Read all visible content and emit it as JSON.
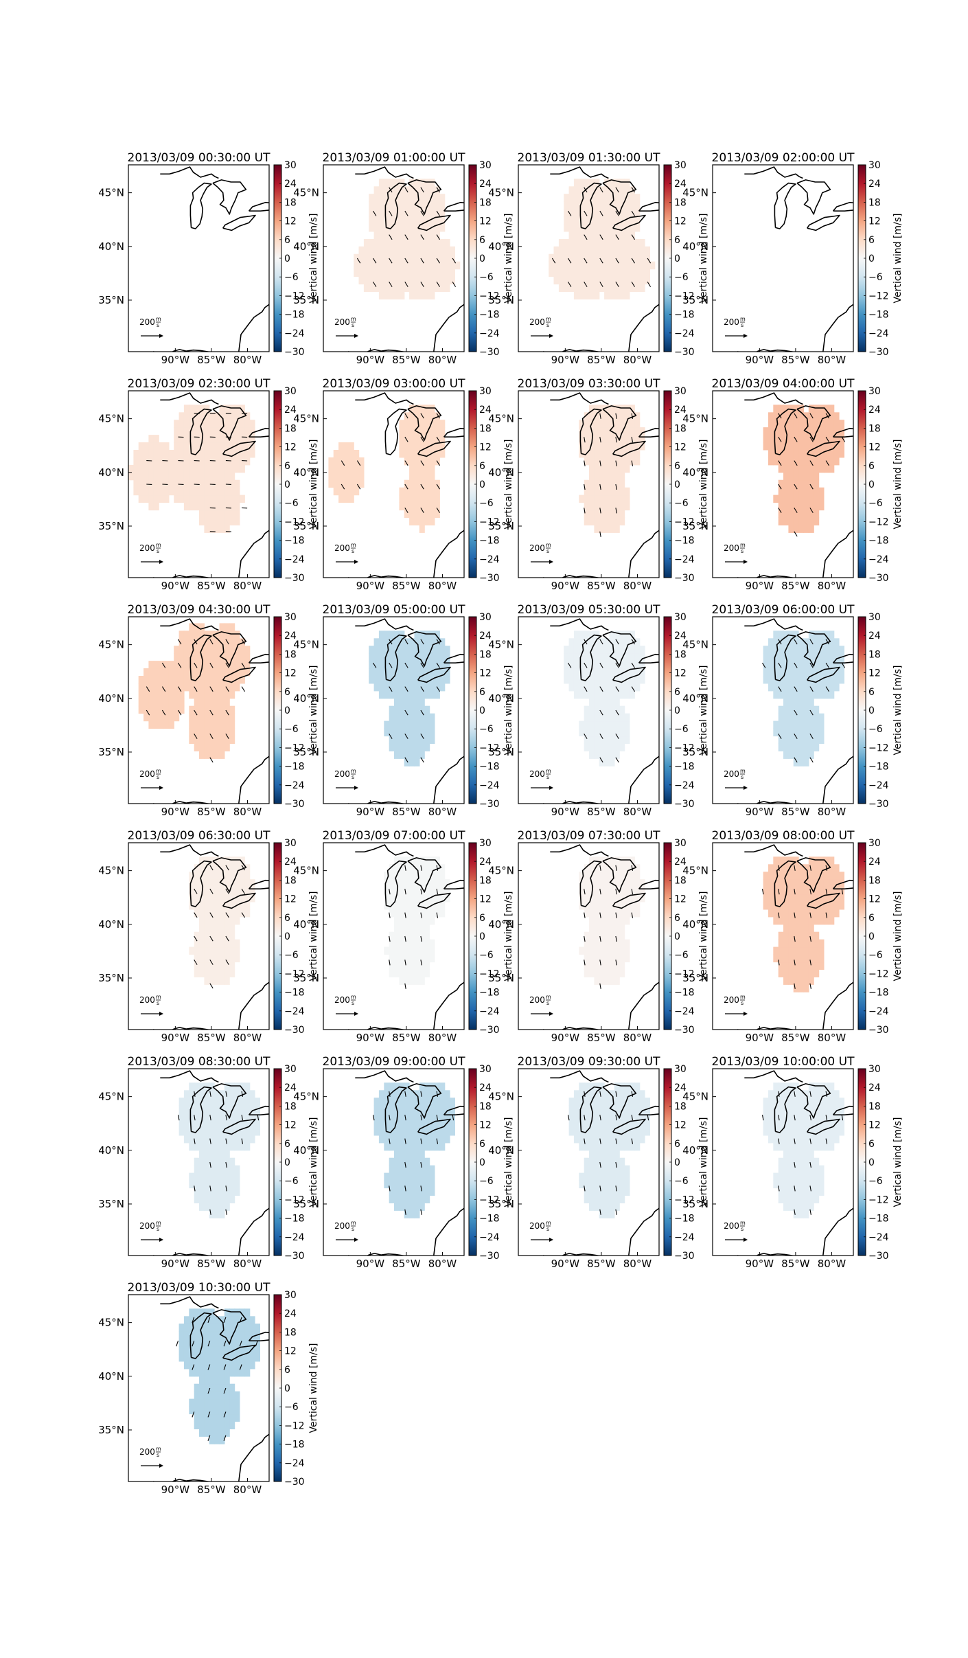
{
  "figure": {
    "colorbar_label": "Vertical wind [m/s]",
    "colorbar_ticks": [
      30,
      24,
      18,
      12,
      6,
      0,
      -6,
      -12,
      -18,
      -24,
      -30
    ],
    "lat_ticks": [
      "45°N",
      "40°N",
      "35°N"
    ],
    "lon_ticks": [
      "90°W",
      "85°W",
      "80°W"
    ],
    "scale_arrow_label": "200 m/s",
    "colormap": [
      "#053061",
      "#2166ac",
      "#4393c3",
      "#92c5de",
      "#d1e5f0",
      "#f7f7f7",
      "#fddbc7",
      "#f4a582",
      "#d6604d",
      "#b2182b",
      "#67001f"
    ]
  },
  "chart_data": [
    {
      "type": "heatmap",
      "title": "2013/03/09 00:30:00 UT",
      "vertical_wind_mps": null,
      "mask": "none",
      "arrow_dir": "none"
    },
    {
      "type": "heatmap",
      "title": "2013/03/09 01:00:00 UT",
      "vertical_wind_mps": 3,
      "mask": "A",
      "arrow_dir": "se"
    },
    {
      "type": "heatmap",
      "title": "2013/03/09 01:30:00 UT",
      "vertical_wind_mps": 3,
      "mask": "A",
      "arrow_dir": "se"
    },
    {
      "type": "heatmap",
      "title": "2013/03/09 02:00:00 UT",
      "vertical_wind_mps": null,
      "mask": "none",
      "arrow_dir": "none"
    },
    {
      "type": "heatmap",
      "title": "2013/03/09 02:30:00 UT",
      "vertical_wind_mps": 4,
      "mask": "B",
      "arrow_dir": "e"
    },
    {
      "type": "heatmap",
      "title": "2013/03/09 03:00:00 UT",
      "vertical_wind_mps": 6,
      "mask": "C",
      "arrow_dir": "se"
    },
    {
      "type": "heatmap",
      "title": "2013/03/09 03:30:00 UT",
      "vertical_wind_mps": 4,
      "mask": "D",
      "arrow_dir": "s"
    },
    {
      "type": "heatmap",
      "title": "2013/03/09 04:00:00 UT",
      "vertical_wind_mps": 9,
      "mask": "E",
      "arrow_dir": "se"
    },
    {
      "type": "heatmap",
      "title": "2013/03/09 04:30:00 UT",
      "vertical_wind_mps": 7,
      "mask": "F",
      "arrow_dir": "se"
    },
    {
      "type": "heatmap",
      "title": "2013/03/09 05:00:00 UT",
      "vertical_wind_mps": -8,
      "mask": "G",
      "arrow_dir": "se"
    },
    {
      "type": "heatmap",
      "title": "2013/03/09 05:30:00 UT",
      "vertical_wind_mps": -2,
      "mask": "G",
      "arrow_dir": "se"
    },
    {
      "type": "heatmap",
      "title": "2013/03/09 06:00:00 UT",
      "vertical_wind_mps": -7,
      "mask": "H",
      "arrow_dir": "se"
    },
    {
      "type": "heatmap",
      "title": "2013/03/09 06:30:00 UT",
      "vertical_wind_mps": 2,
      "mask": "D",
      "arrow_dir": "se"
    },
    {
      "type": "heatmap",
      "title": "2013/03/09 07:00:00 UT",
      "vertical_wind_mps": -0.5,
      "mask": "D",
      "arrow_dir": "s"
    },
    {
      "type": "heatmap",
      "title": "2013/03/09 07:30:00 UT",
      "vertical_wind_mps": 1,
      "mask": "D",
      "arrow_dir": "s"
    },
    {
      "type": "heatmap",
      "title": "2013/03/09 08:00:00 UT",
      "vertical_wind_mps": 8,
      "mask": "H",
      "arrow_dir": "s"
    },
    {
      "type": "heatmap",
      "title": "2013/03/09 08:30:00 UT",
      "vertical_wind_mps": -4,
      "mask": "H",
      "arrow_dir": "s"
    },
    {
      "type": "heatmap",
      "title": "2013/03/09 09:00:00 UT",
      "vertical_wind_mps": -8,
      "mask": "H",
      "arrow_dir": "s"
    },
    {
      "type": "heatmap",
      "title": "2013/03/09 09:30:00 UT",
      "vertical_wind_mps": -4,
      "mask": "H",
      "arrow_dir": "s"
    },
    {
      "type": "heatmap",
      "title": "2013/03/09 10:00:00 UT",
      "vertical_wind_mps": -3,
      "mask": "H",
      "arrow_dir": "s"
    },
    {
      "type": "heatmap",
      "title": "2013/03/09 10:30:00 UT",
      "vertical_wind_mps": -9,
      "mask": "H",
      "arrow_dir": "sw"
    }
  ]
}
